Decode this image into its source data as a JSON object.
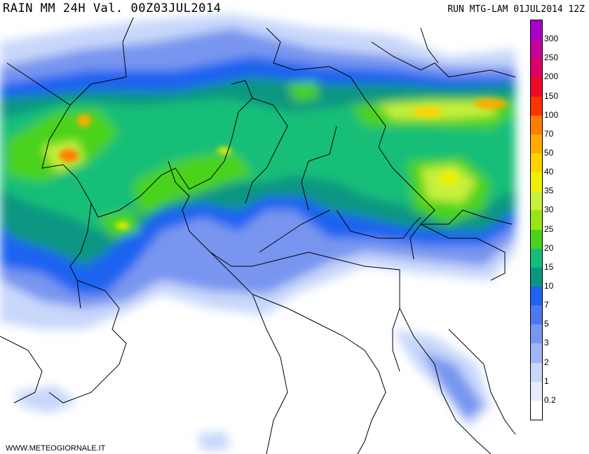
{
  "header": {
    "title": "RAIN MM 24H Val. 00Z03JUL2014",
    "run": "RUN MTG-LAM 01JUL2014 12Z"
  },
  "footer": {
    "credit": "WWW.METEOGIORNALE.IT"
  },
  "legend": {
    "items": [
      {
        "label": "300",
        "color": "#a800c8"
      },
      {
        "label": "250",
        "color": "#c8009b"
      },
      {
        "label": "200",
        "color": "#dc0064"
      },
      {
        "label": "150",
        "color": "#ec0a28"
      },
      {
        "label": "100",
        "color": "#ff3200"
      },
      {
        "label": "70",
        "color": "#ff7d00"
      },
      {
        "label": "50",
        "color": "#ffaa00"
      },
      {
        "label": "40",
        "color": "#ffd200"
      },
      {
        "label": "35",
        "color": "#f0f000"
      },
      {
        "label": "30",
        "color": "#c8f03c"
      },
      {
        "label": "25",
        "color": "#96e614"
      },
      {
        "label": "20",
        "color": "#4bd21e"
      },
      {
        "label": "15",
        "color": "#14be78"
      },
      {
        "label": "10",
        "color": "#0a9682"
      },
      {
        "label": "7",
        "color": "#1e64f0"
      },
      {
        "label": "5",
        "color": "#5078ee"
      },
      {
        "label": "3",
        "color": "#7896f0"
      },
      {
        "label": "2",
        "color": "#a0b4f6"
      },
      {
        "label": "1",
        "color": "#c8d7fa"
      },
      {
        "label": "0.2",
        "color": "#e6ebfe"
      }
    ],
    "bottom_color": "#ffffff"
  }
}
